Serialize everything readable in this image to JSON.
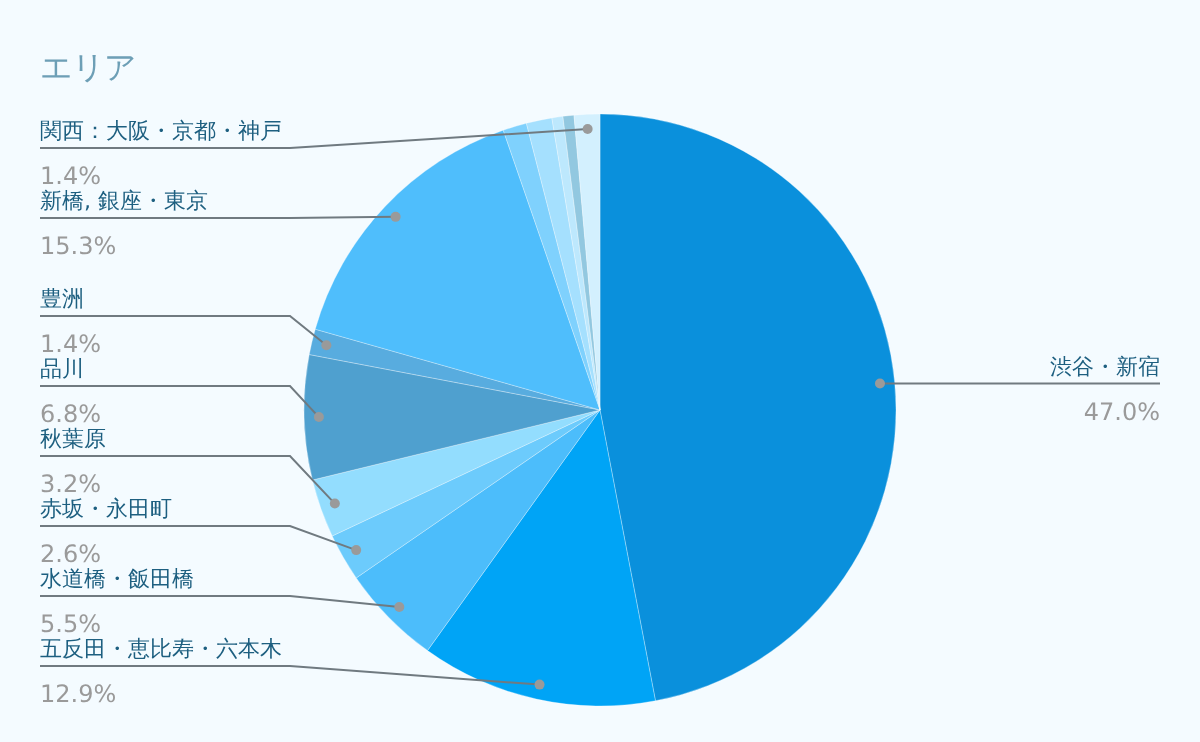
{
  "chart_data": {
    "type": "pie",
    "title": "エリア",
    "categories": [
      "渋谷・新宿",
      "五反田・恵比寿・六本木",
      "水道橋・飯田橋",
      "赤坂・永田町",
      "秋葉原",
      "品川",
      "豊洲",
      "新橋, 銀座・東京",
      null,
      null,
      null,
      null,
      "関西：大阪・京都・神戸"
    ],
    "values": [
      47.0,
      12.9,
      5.5,
      2.6,
      3.2,
      6.8,
      1.4,
      15.3,
      1.3,
      1.4,
      0.6,
      0.6,
      1.4
    ],
    "value_labels": [
      "47.0%",
      "12.9%",
      "5.5%",
      "2.6%",
      "3.2%",
      "6.8%",
      "1.4%",
      "15.3%",
      null,
      null,
      null,
      null,
      "1.4%"
    ],
    "colors": [
      "#0a90dc",
      "#00a4f6",
      "#4cbdfb",
      "#6ccbfc",
      "#93ddfe",
      "#4fa0cf",
      "#58acdf",
      "#4fbefc",
      "#7fd1fd",
      "#a5e0fe",
      "#bde8fd",
      "#92c8e0",
      "#d3f0fe"
    ],
    "legend": false
  }
}
